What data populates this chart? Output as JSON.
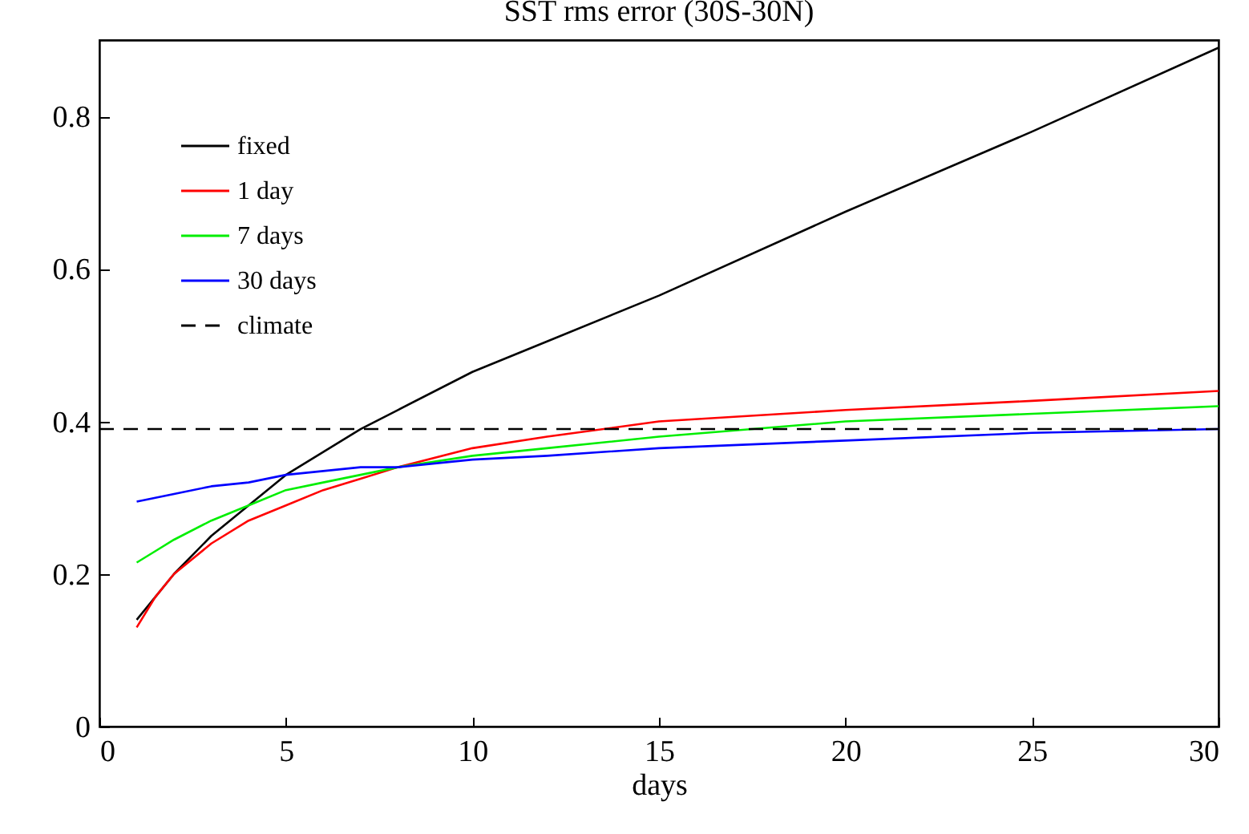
{
  "chart_data": {
    "type": "line",
    "title": "SST rms error (30S-30N)",
    "xlabel": "days",
    "x": [
      1,
      1.5,
      2,
      3,
      4,
      5,
      6,
      7,
      8,
      10,
      12,
      15,
      20,
      25,
      30
    ],
    "xlim": [
      0,
      30
    ],
    "xticks": [
      0,
      5,
      10,
      15,
      20,
      25,
      30
    ],
    "ylim": [
      0,
      0.9
    ],
    "yticks": [
      {
        "value": 0,
        "label": "0"
      },
      0.2,
      0.4,
      0.6,
      0.8
    ],
    "grid": false,
    "legend": "top left",
    "marker": "none",
    "series": [
      {
        "name": "fixed",
        "color": "#000000",
        "line_style": "solid",
        "values": [
          0.14,
          0.17,
          0.2,
          0.25,
          0.29,
          0.33,
          0.36,
          0.39,
          0.415,
          0.465,
          0.505,
          0.565,
          0.675,
          0.78,
          0.89
        ]
      },
      {
        "name": "1 day",
        "color": "#ff0000",
        "line_style": "solid",
        "values": [
          0.13,
          0.17,
          0.2,
          0.24,
          0.27,
          0.29,
          0.31,
          0.325,
          0.34,
          0.365,
          0.38,
          0.4,
          0.415,
          0.427,
          0.44
        ]
      },
      {
        "name": "7 days",
        "color": "#00ee00",
        "line_style": "solid",
        "values": [
          0.215,
          0.23,
          0.245,
          0.27,
          0.29,
          0.31,
          0.32,
          0.33,
          0.34,
          0.355,
          0.365,
          0.38,
          0.4,
          0.41,
          0.42
        ]
      },
      {
        "name": "30 days",
        "color": "#0000ff",
        "line_style": "solid",
        "values": [
          0.295,
          0.3,
          0.305,
          0.315,
          0.32,
          0.33,
          0.335,
          0.34,
          0.34,
          0.35,
          0.355,
          0.365,
          0.375,
          0.385,
          0.39
        ]
      },
      {
        "name": "climate",
        "color": "#000000",
        "line_style": "dashed",
        "x": [
          0,
          30
        ],
        "values": [
          0.39,
          0.39
        ]
      }
    ]
  }
}
